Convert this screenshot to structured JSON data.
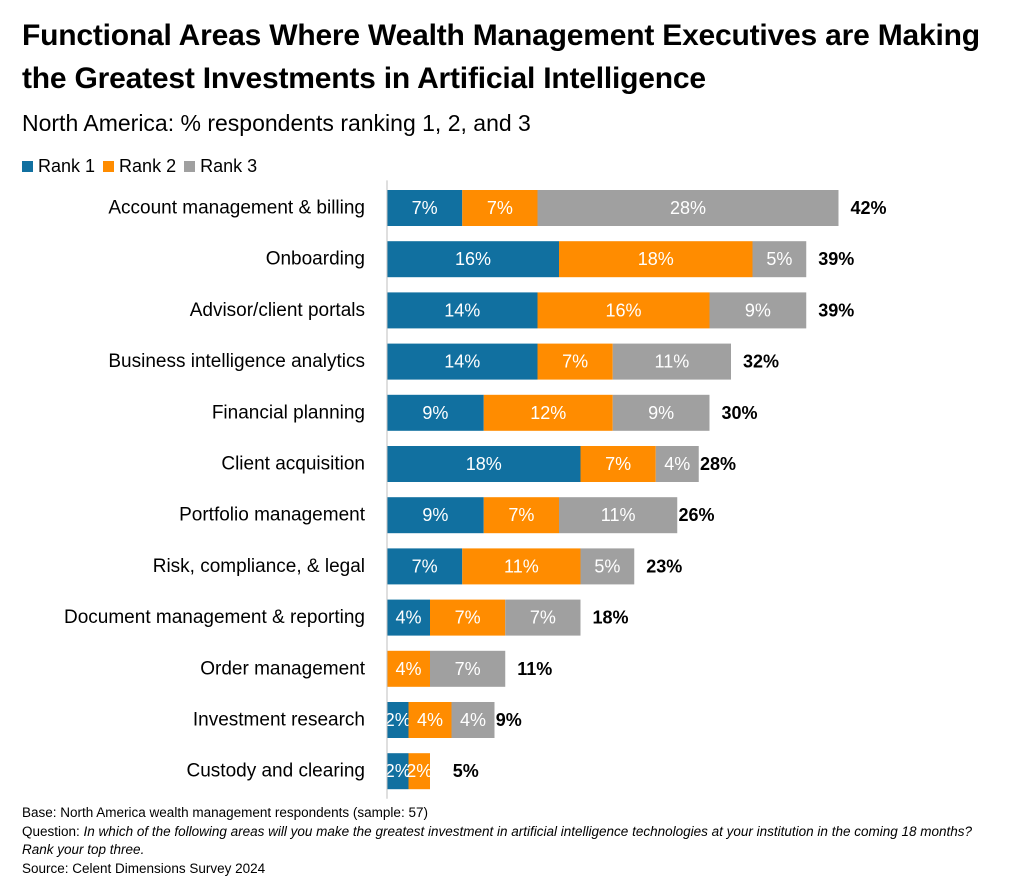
{
  "title": "Functional Areas Where Wealth Management Executives are Making the Greatest Investments in Artificial Intelligence",
  "subtitle": "North America: % respondents ranking 1, 2, and 3",
  "legend": [
    {
      "label": "Rank 1",
      "color": "#1170a0"
    },
    {
      "label": "Rank 2",
      "color": "#ff8c00"
    },
    {
      "label": "Rank 3",
      "color": "#a0a0a0"
    }
  ],
  "chart_data": {
    "type": "bar",
    "orientation": "horizontal",
    "stacked": true,
    "title": "Functional Areas Where Wealth Management Executives are Making the Greatest Investments in Artificial Intelligence",
    "subtitle": "North America: % respondents ranking 1, 2, and 3",
    "categories": [
      "Account management & billing",
      "Onboarding",
      "Advisor/client portals",
      "Business intelligence analytics",
      "Financial planning",
      "Client acquisition",
      "Portfolio management",
      "Risk, compliance, & legal",
      "Document management & reporting",
      "Order management",
      "Investment research",
      "Custody and clearing"
    ],
    "series": [
      {
        "name": "Rank 1",
        "color": "#1170a0",
        "values": [
          7,
          16,
          14,
          14,
          9,
          18,
          9,
          7,
          4,
          0,
          2,
          2
        ]
      },
      {
        "name": "Rank 2",
        "color": "#ff8c00",
        "values": [
          7,
          18,
          16,
          7,
          12,
          7,
          7,
          11,
          7,
          4,
          4,
          2
        ]
      },
      {
        "name": "Rank 3",
        "color": "#a0a0a0",
        "values": [
          28,
          5,
          9,
          11,
          9,
          4,
          11,
          5,
          7,
          7,
          4,
          0
        ]
      }
    ],
    "totals": [
      42,
      39,
      39,
      32,
      30,
      28,
      26,
      23,
      18,
      11,
      9,
      5
    ],
    "value_suffix": "%",
    "xlabel": "",
    "ylabel": "",
    "xlim": [
      0,
      45
    ],
    "grid": false,
    "legend_position": "top-left"
  },
  "footnotes": {
    "base": "Base: North America wealth management respondents (sample: 57)",
    "question_label": "Question: ",
    "question_text": "In which of the following areas will you make the greatest investment in artificial intelligence technologies at your institution in the coming 18 months? Rank your top three.",
    "source": "Source: Celent Dimensions Survey 2024"
  }
}
